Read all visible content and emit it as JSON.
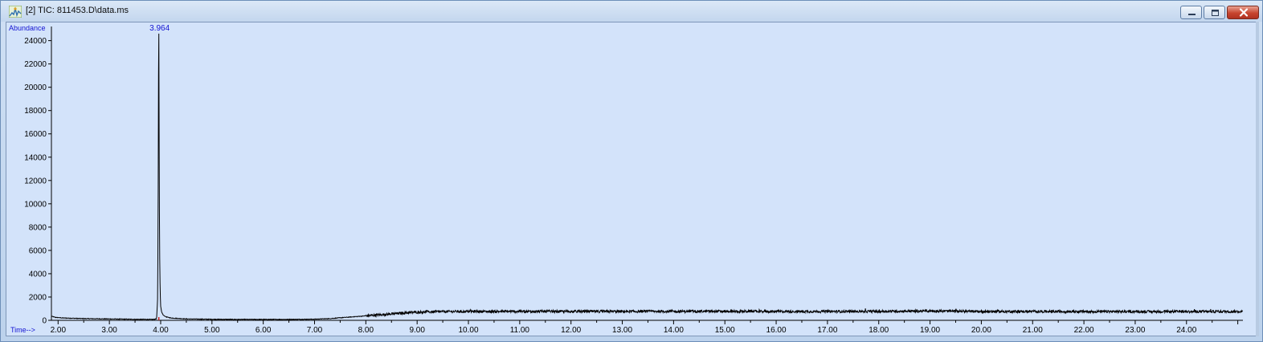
{
  "window": {
    "title": "[2] TIC: 811453.D\\data.ms",
    "icon": "chromatogram-app-icon",
    "controls": [
      "minimize-icon",
      "restore-icon",
      "close-icon"
    ],
    "accent_colors": {
      "plot_background": "#d3e3fa",
      "axis_label": "#1414d2",
      "trace": "#000000",
      "peak_marker": "#c81e1e"
    }
  },
  "chart_data": {
    "type": "line",
    "title": "",
    "ylabel": "Abundance",
    "xlabel": "Time-->",
    "xlim": [
      1.87,
      25.1
    ],
    "ylim": [
      0,
      24800
    ],
    "x_ticks": [
      2.0,
      3.0,
      4.0,
      5.0,
      6.0,
      7.0,
      8.0,
      9.0,
      10.0,
      11.0,
      12.0,
      13.0,
      14.0,
      15.0,
      16.0,
      17.0,
      18.0,
      19.0,
      20.0,
      21.0,
      22.0,
      23.0,
      24.0
    ],
    "x_tick_labels": [
      "2.00",
      "3.00",
      "4.00",
      "5.00",
      "6.00",
      "7.00",
      "8.00",
      "9.00",
      "10.00",
      "11.00",
      "12.00",
      "13.00",
      "14.00",
      "15.00",
      "16.00",
      "17.00",
      "18.00",
      "19.00",
      "20.00",
      "21.00",
      "22.00",
      "23.00",
      "24.00"
    ],
    "y_ticks": [
      0,
      2000,
      4000,
      6000,
      8000,
      10000,
      12000,
      14000,
      16000,
      18000,
      20000,
      22000,
      24000
    ],
    "y_tick_labels": [
      "0",
      "2000",
      "4000",
      "6000",
      "8000",
      "10000",
      "12000",
      "14000",
      "16000",
      "18000",
      "20000",
      "22000",
      "24000"
    ],
    "grid": false,
    "series": [
      {
        "x": [
          1.87,
          1.95,
          2.1,
          2.5,
          3.0,
          3.5,
          3.85,
          3.92,
          3.94,
          3.95,
          3.958,
          3.964,
          3.97,
          3.98,
          3.99,
          4.0,
          4.02,
          4.05,
          4.1,
          4.2,
          4.5,
          5.0,
          5.5,
          6.0,
          6.5,
          7.0,
          7.3,
          7.6,
          7.9,
          8.2,
          8.5,
          8.8,
          9.0,
          9.5,
          10.0,
          11.0,
          12.0,
          13.0,
          14.0,
          15.0,
          16.0,
          17.0,
          18.0,
          19.0,
          20.0,
          21.0,
          22.0,
          23.0,
          24.0,
          25.1
        ],
        "y": [
          350,
          250,
          200,
          150,
          120,
          90,
          80,
          120,
          1800,
          7800,
          21000,
          24600,
          15000,
          6000,
          2500,
          1200,
          700,
          450,
          300,
          200,
          120,
          90,
          80,
          80,
          80,
          100,
          150,
          250,
          350,
          450,
          550,
          650,
          700,
          750,
          760,
          760,
          760,
          760,
          770,
          770,
          760,
          760,
          770,
          800,
          760,
          760,
          750,
          750,
          750,
          760
        ]
      }
    ],
    "annotations": [
      {
        "x": 3.964,
        "label": "3.964"
      }
    ]
  }
}
